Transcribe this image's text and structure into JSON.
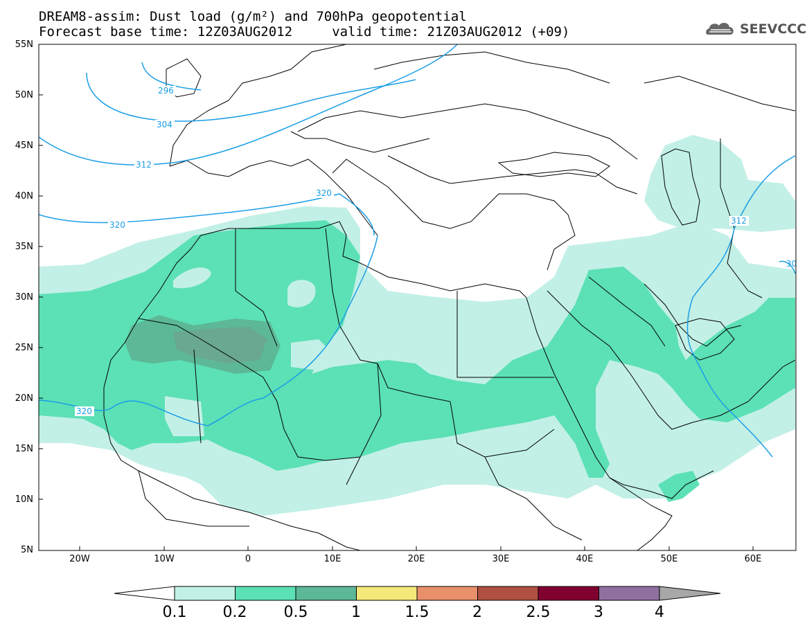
{
  "title": {
    "line1": "DREAM8-assim: Dust load (g/m²) and 700hPa geopotential",
    "line2": "Forecast base time: 12Z03AUG2012     valid time: 21Z03AUG2012 (+09)"
  },
  "logo": {
    "text": "SEEVCCC",
    "icon": "cloud-icon"
  },
  "axes": {
    "lat_labels": [
      "55N",
      "50N",
      "45N",
      "40N",
      "35N",
      "30N",
      "25N",
      "20N",
      "15N",
      "10N",
      "5N"
    ],
    "lon_labels": [
      "20W",
      "10W",
      "0",
      "10E",
      "20E",
      "30E",
      "40E",
      "50E",
      "60E"
    ]
  },
  "isolines": {
    "color": "#1a9ee6",
    "labels": [
      "296",
      "304",
      "312",
      "320",
      "320",
      "320",
      "312",
      "30"
    ]
  },
  "colorbar": {
    "labels": [
      "0.1",
      "0.2",
      "0.5",
      "1",
      "1.5",
      "2",
      "2.5",
      "3",
      "4"
    ],
    "colors": [
      "#c2f0e6",
      "#5ce0b6",
      "#5cb896",
      "#f5e87a",
      "#e8906a",
      "#b05040",
      "#800030",
      "#9070a0",
      "#a8a8a8"
    ]
  },
  "map_colors": {
    "ocean": "#ffffff",
    "coast": "#000000",
    "light": "#c2f0e6",
    "medium": "#5ce0b6",
    "dark": "#5cb896",
    "dark2": "#6aa890"
  }
}
